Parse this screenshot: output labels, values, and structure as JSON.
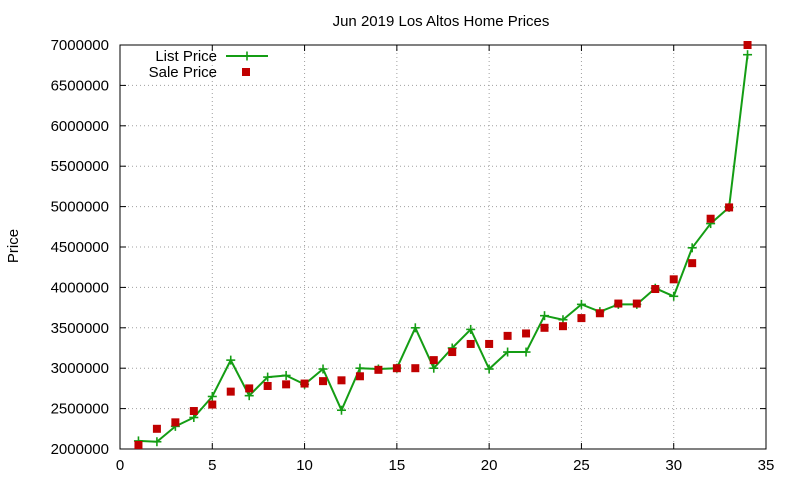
{
  "chart_data": {
    "type": "line",
    "title": "Jun 2019 Los Altos Home Prices",
    "xlabel": "",
    "ylabel": "Price",
    "xlim": [
      0,
      35
    ],
    "ylim": [
      2000000,
      7000000
    ],
    "x_ticks": [
      0,
      5,
      10,
      15,
      20,
      25,
      30,
      35
    ],
    "y_ticks": [
      2000000,
      2500000,
      3000000,
      3500000,
      4000000,
      4500000,
      5000000,
      5500000,
      6000000,
      6500000,
      7000000
    ],
    "grid": true,
    "legend_position": "top-left",
    "series": [
      {
        "name": "List Price",
        "style": "line-with-plus-markers",
        "color": "#149d14",
        "x": [
          1,
          2,
          3,
          4,
          5,
          6,
          7,
          8,
          9,
          10,
          11,
          12,
          13,
          14,
          15,
          16,
          17,
          18,
          19,
          20,
          21,
          22,
          23,
          24,
          25,
          26,
          27,
          28,
          29,
          30,
          31,
          32,
          33,
          34
        ],
        "values": [
          2100000,
          2090000,
          2280000,
          2390000,
          2650000,
          3100000,
          2660000,
          2890000,
          2910000,
          2800000,
          2990000,
          2480000,
          3000000,
          2990000,
          3000000,
          3500000,
          3000000,
          3250000,
          3480000,
          2990000,
          3200000,
          3200000,
          3650000,
          3600000,
          3790000,
          3700000,
          3790000,
          3790000,
          3990000,
          3890000,
          4490000,
          4790000,
          4990000,
          6880000
        ]
      },
      {
        "name": "Sale Price",
        "style": "square-markers",
        "color": "#c00000",
        "x": [
          1,
          2,
          3,
          4,
          5,
          6,
          7,
          8,
          9,
          10,
          11,
          12,
          13,
          14,
          15,
          16,
          17,
          18,
          19,
          20,
          21,
          22,
          23,
          24,
          25,
          26,
          27,
          28,
          29,
          30,
          31,
          32,
          33,
          34
        ],
        "values": [
          2050000,
          2250000,
          2330000,
          2470000,
          2550000,
          2710000,
          2750000,
          2780000,
          2800000,
          2810000,
          2840000,
          2850000,
          2900000,
          2980000,
          3000000,
          3000000,
          3100000,
          3200000,
          3300000,
          3300000,
          3400000,
          3430000,
          3500000,
          3520000,
          3620000,
          3680000,
          3800000,
          3800000,
          3980000,
          4100000,
          4300000,
          4850000,
          4990000,
          7000000
        ]
      }
    ]
  }
}
